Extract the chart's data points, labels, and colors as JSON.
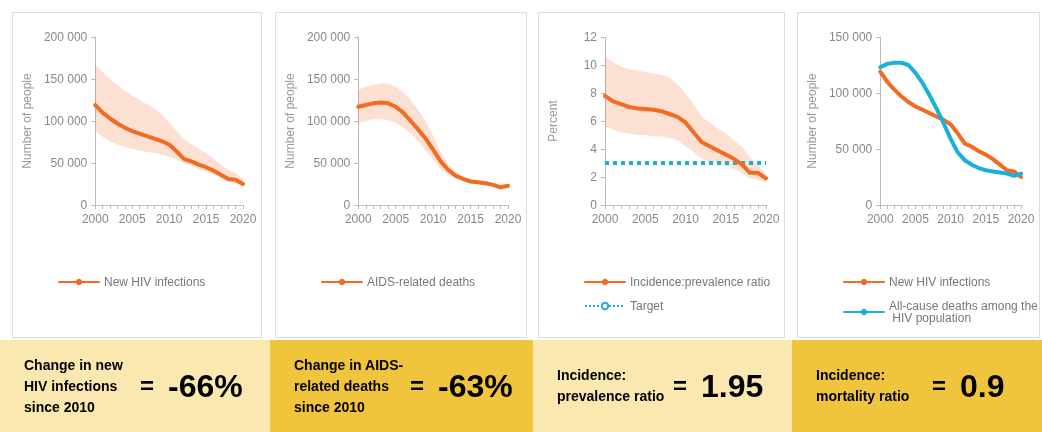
{
  "chart_data": [
    {
      "type": "line",
      "ylabel": "Number of people",
      "x": [
        2000,
        2001,
        2002,
        2003,
        2004,
        2005,
        2006,
        2007,
        2008,
        2009,
        2010,
        2011,
        2012,
        2013,
        2014,
        2015,
        2016,
        2017,
        2018,
        2019,
        2020
      ],
      "xlim": [
        2000,
        2020
      ],
      "xticks": [
        2000,
        {
          "value": 2001,
          "label": null
        },
        {
          "value": 2002,
          "label": null
        },
        {
          "value": 2003,
          "label": null
        },
        {
          "value": 2004,
          "label": null
        },
        2005,
        {
          "value": 2006,
          "label": null
        },
        {
          "value": 2007,
          "label": null
        },
        {
          "value": 2008,
          "label": null
        },
        {
          "value": 2009,
          "label": null
        },
        2010,
        {
          "value": 2011,
          "label": null
        },
        {
          "value": 2012,
          "label": null
        },
        {
          "value": 2013,
          "label": null
        },
        {
          "value": 2014,
          "label": null
        },
        2015,
        {
          "value": 2016,
          "label": null
        },
        {
          "value": 2017,
          "label": null
        },
        {
          "value": 2018,
          "label": null
        },
        {
          "value": 2019,
          "label": null
        },
        2020
      ],
      "ylim": [
        0,
        200000
      ],
      "yticks": [
        0,
        {
          "value": 50000,
          "label": "50 000"
        },
        {
          "value": 100000,
          "label": "100 000"
        },
        {
          "value": 150000,
          "label": "150 000"
        },
        {
          "value": 200000,
          "label": "200 000"
        }
      ],
      "grid": false,
      "legend": "bottom",
      "marker": "none",
      "line_style": "solid",
      "series": [
        {
          "name": "New HIV infections",
          "color": "#f26b21",
          "values": [
            119000,
            110000,
            103000,
            97000,
            92000,
            88000,
            85000,
            82000,
            79000,
            76000,
            72000,
            64000,
            55000,
            52000,
            48000,
            45000,
            41000,
            36000,
            31000,
            30000,
            25000
          ],
          "lower": [
            88000,
            81000,
            76000,
            72000,
            69000,
            67000,
            65000,
            63000,
            62000,
            60000,
            57000,
            54000,
            50000,
            47000,
            43000,
            40000,
            36000,
            32000,
            28000,
            26000,
            22000
          ],
          "upper": [
            167000,
            158000,
            150000,
            143000,
            136000,
            130000,
            125000,
            120000,
            115000,
            108000,
            98000,
            88000,
            78000,
            73000,
            67000,
            62000,
            55000,
            48000,
            42000,
            38000,
            31000
          ]
        }
      ]
    },
    {
      "type": "line",
      "ylabel": "Number of people",
      "x": [
        2000,
        2001,
        2002,
        2003,
        2004,
        2005,
        2006,
        2007,
        2008,
        2009,
        2010,
        2011,
        2012,
        2013,
        2014,
        2015,
        2016,
        2017,
        2018,
        2019,
        2020
      ],
      "xlim": [
        2000,
        2020
      ],
      "xticks": [
        2000,
        {
          "value": 2001,
          "label": null
        },
        {
          "value": 2002,
          "label": null
        },
        {
          "value": 2003,
          "label": null
        },
        {
          "value": 2004,
          "label": null
        },
        2005,
        {
          "value": 2006,
          "label": null
        },
        {
          "value": 2007,
          "label": null
        },
        {
          "value": 2008,
          "label": null
        },
        {
          "value": 2009,
          "label": null
        },
        2010,
        {
          "value": 2011,
          "label": null
        },
        {
          "value": 2012,
          "label": null
        },
        {
          "value": 2013,
          "label": null
        },
        {
          "value": 2014,
          "label": null
        },
        2015,
        {
          "value": 2016,
          "label": null
        },
        {
          "value": 2017,
          "label": null
        },
        {
          "value": 2018,
          "label": null
        },
        {
          "value": 2019,
          "label": null
        },
        2020
      ],
      "ylim": [
        0,
        200000
      ],
      "yticks": [
        0,
        {
          "value": 50000,
          "label": "50 000"
        },
        {
          "value": 100000,
          "label": "100 000"
        },
        {
          "value": 150000,
          "label": "150 000"
        },
        {
          "value": 200000,
          "label": "200 000"
        }
      ],
      "grid": false,
      "legend": "bottom",
      "marker": "none",
      "line_style": "solid",
      "series": [
        {
          "name": "AIDS-related deaths",
          "color": "#f26b21",
          "values": [
            117000,
            119000,
            121000,
            122000,
            121000,
            117000,
            110000,
            100000,
            90000,
            79000,
            66000,
            52000,
            42000,
            35000,
            31000,
            28000,
            27000,
            26000,
            24000,
            21000,
            23000
          ],
          "lower": [
            97000,
            100000,
            102000,
            102000,
            101000,
            98000,
            92000,
            85000,
            76000,
            65000,
            54000,
            43000,
            36000,
            32000,
            29000,
            26000,
            25000,
            23000,
            22000,
            20000,
            21000
          ],
          "upper": [
            137000,
            141000,
            143000,
            145000,
            144000,
            141000,
            134000,
            125000,
            113000,
            100000,
            82000,
            64000,
            49000,
            39000,
            34000,
            31000,
            29000,
            28000,
            26000,
            25000,
            25000
          ]
        }
      ]
    },
    {
      "type": "line",
      "ylabel": "Percent",
      "x": [
        2000,
        2001,
        2002,
        2003,
        2004,
        2005,
        2006,
        2007,
        2008,
        2009,
        2010,
        2011,
        2012,
        2013,
        2014,
        2015,
        2016,
        2017,
        2018,
        2019,
        2020
      ],
      "xlim": [
        2000,
        2020
      ],
      "xticks": [
        2000,
        {
          "value": 2001,
          "label": null
        },
        {
          "value": 2002,
          "label": null
        },
        {
          "value": 2003,
          "label": null
        },
        {
          "value": 2004,
          "label": null
        },
        2005,
        {
          "value": 2006,
          "label": null
        },
        {
          "value": 2007,
          "label": null
        },
        {
          "value": 2008,
          "label": null
        },
        {
          "value": 2009,
          "label": null
        },
        2010,
        {
          "value": 2011,
          "label": null
        },
        {
          "value": 2012,
          "label": null
        },
        {
          "value": 2013,
          "label": null
        },
        {
          "value": 2014,
          "label": null
        },
        2015,
        {
          "value": 2016,
          "label": null
        },
        {
          "value": 2017,
          "label": null
        },
        {
          "value": 2018,
          "label": null
        },
        {
          "value": 2019,
          "label": null
        },
        2020
      ],
      "ylim": [
        0,
        12
      ],
      "yticks": [
        0,
        2,
        4,
        6,
        8,
        10,
        12
      ],
      "grid": false,
      "legend": "bottom",
      "marker": "none",
      "line_style": "solid",
      "series": [
        {
          "name": "Incidence:prevalence ratio",
          "color": "#f26b21",
          "values": [
            7.8,
            7.4,
            7.2,
            7.0,
            6.9,
            6.85,
            6.8,
            6.7,
            6.5,
            6.3,
            5.9,
            5.2,
            4.5,
            4.2,
            3.9,
            3.6,
            3.3,
            2.9,
            2.3,
            2.3,
            1.9
          ],
          "lower": [
            5.6,
            5.4,
            5.2,
            5.1,
            5.0,
            5.0,
            4.9,
            4.9,
            4.8,
            4.6,
            4.2,
            3.8,
            3.3,
            3.1,
            3.0,
            2.8,
            2.6,
            2.3,
            1.9,
            1.8,
            1.6
          ],
          "upper": [
            10.6,
            10.2,
            9.9,
            9.7,
            9.6,
            9.5,
            9.4,
            9.3,
            9.1,
            8.6,
            8.0,
            7.2,
            6.3,
            5.9,
            5.5,
            5.1,
            4.6,
            4.2,
            3.4,
            2.8,
            2.2
          ]
        }
      ],
      "ref_lines": [
        {
          "axis": "y",
          "value": 3,
          "label": "Target",
          "color": "#1ab0d8",
          "line_style": "dotted"
        }
      ]
    },
    {
      "type": "line",
      "ylabel": "Number of people",
      "x": [
        2000,
        2001,
        2002,
        2003,
        2004,
        2005,
        2006,
        2007,
        2008,
        2009,
        2010,
        2011,
        2012,
        2013,
        2014,
        2015,
        2016,
        2017,
        2018,
        2019,
        2020
      ],
      "xlim": [
        2000,
        2020
      ],
      "xticks": [
        2000,
        {
          "value": 2001,
          "label": null
        },
        {
          "value": 2002,
          "label": null
        },
        {
          "value": 2003,
          "label": null
        },
        {
          "value": 2004,
          "label": null
        },
        2005,
        {
          "value": 2006,
          "label": null
        },
        {
          "value": 2007,
          "label": null
        },
        {
          "value": 2008,
          "label": null
        },
        {
          "value": 2009,
          "label": null
        },
        2010,
        {
          "value": 2011,
          "label": null
        },
        {
          "value": 2012,
          "label": null
        },
        {
          "value": 2013,
          "label": null
        },
        {
          "value": 2014,
          "label": null
        },
        2015,
        {
          "value": 2016,
          "label": null
        },
        {
          "value": 2017,
          "label": null
        },
        {
          "value": 2018,
          "label": null
        },
        {
          "value": 2019,
          "label": null
        },
        2020
      ],
      "ylim": [
        0,
        150000
      ],
      "yticks": [
        0,
        {
          "value": 50000,
          "label": "50 000"
        },
        {
          "value": 100000,
          "label": "100 000"
        },
        {
          "value": 150000,
          "label": "150 000"
        }
      ],
      "grid": false,
      "legend": "bottom",
      "marker": "none",
      "line_style": "solid",
      "series": [
        {
          "name": "New HIV infections",
          "color": "#f26b21",
          "values": [
            119000,
            110000,
            103000,
            97000,
            92000,
            88000,
            85000,
            82000,
            79000,
            76000,
            72000,
            64000,
            55000,
            52000,
            48000,
            45000,
            41000,
            36000,
            31000,
            30000,
            25000
          ]
        },
        {
          "name": "All-cause deaths among the HIV population",
          "color": "#1ab0d8",
          "values": [
            123000,
            126000,
            127000,
            127000,
            125000,
            118000,
            109000,
            98000,
            86000,
            73000,
            59000,
            47000,
            40000,
            36000,
            33000,
            31000,
            30000,
            29000,
            28000,
            26000,
            28000
          ]
        }
      ]
    },
    {
      "type": "other",
      "annotations": [
        "Change in new HIV infections since 2010",
        "=",
        "-66%"
      ]
    },
    {
      "type": "other",
      "annotations": [
        "Change in AIDS-related deaths since 2010",
        "=",
        "-63%"
      ]
    },
    {
      "type": "other",
      "annotations": [
        "Incidence: prevalence ratio",
        "=",
        "1.95"
      ]
    },
    {
      "type": "other",
      "annotations": [
        "Incidence: mortality ratio",
        "=",
        "0.9"
      ]
    }
  ]
}
